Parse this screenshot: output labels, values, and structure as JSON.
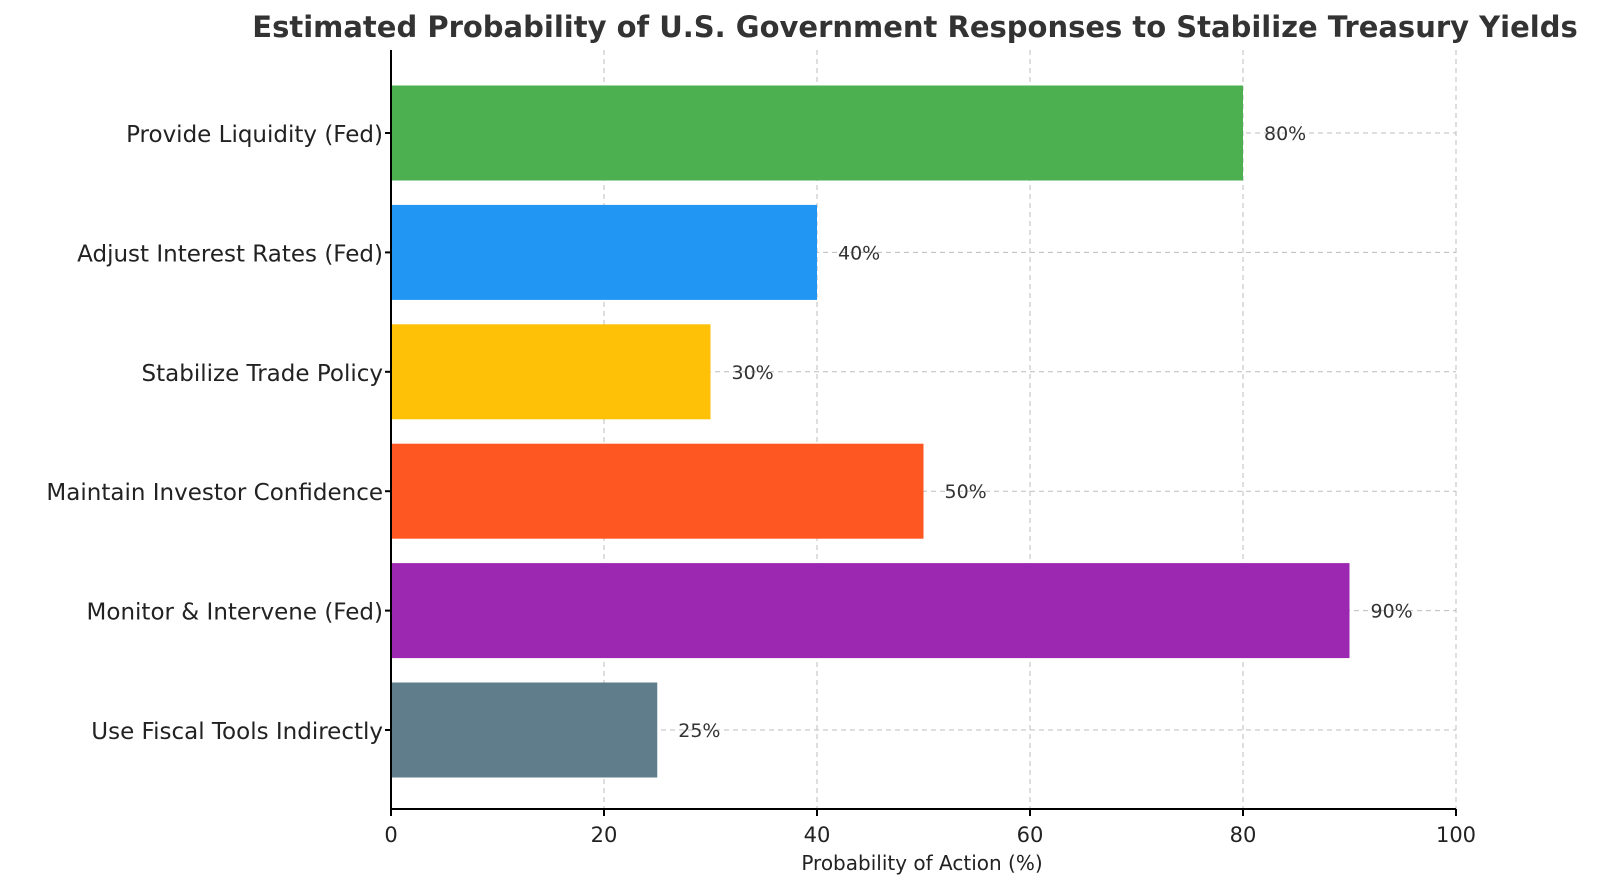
{
  "chart_data": {
    "type": "bar",
    "orientation": "horizontal",
    "title": "Estimated Probability of U.S. Government Responses to Stabilize Treasury Yields",
    "xlabel": "Probability of Action (%)",
    "ylabel": "",
    "xlim": [
      0,
      100
    ],
    "xticks": [
      0,
      20,
      40,
      60,
      80,
      100
    ],
    "grid": true,
    "categories": [
      "Provide Liquidity (Fed)",
      "Adjust Interest Rates (Fed)",
      "Stabilize Trade Policy",
      "Maintain Investor Confidence",
      "Monitor & Intervene (Fed)",
      "Use Fiscal Tools Indirectly"
    ],
    "values": [
      80,
      40,
      30,
      50,
      90,
      25
    ],
    "value_labels": [
      "80%",
      "40%",
      "30%",
      "50%",
      "90%",
      "25%"
    ],
    "colors": [
      "#4caf50",
      "#2196f3",
      "#ffc107",
      "#ff5722",
      "#9c27b0",
      "#607d8b"
    ]
  }
}
